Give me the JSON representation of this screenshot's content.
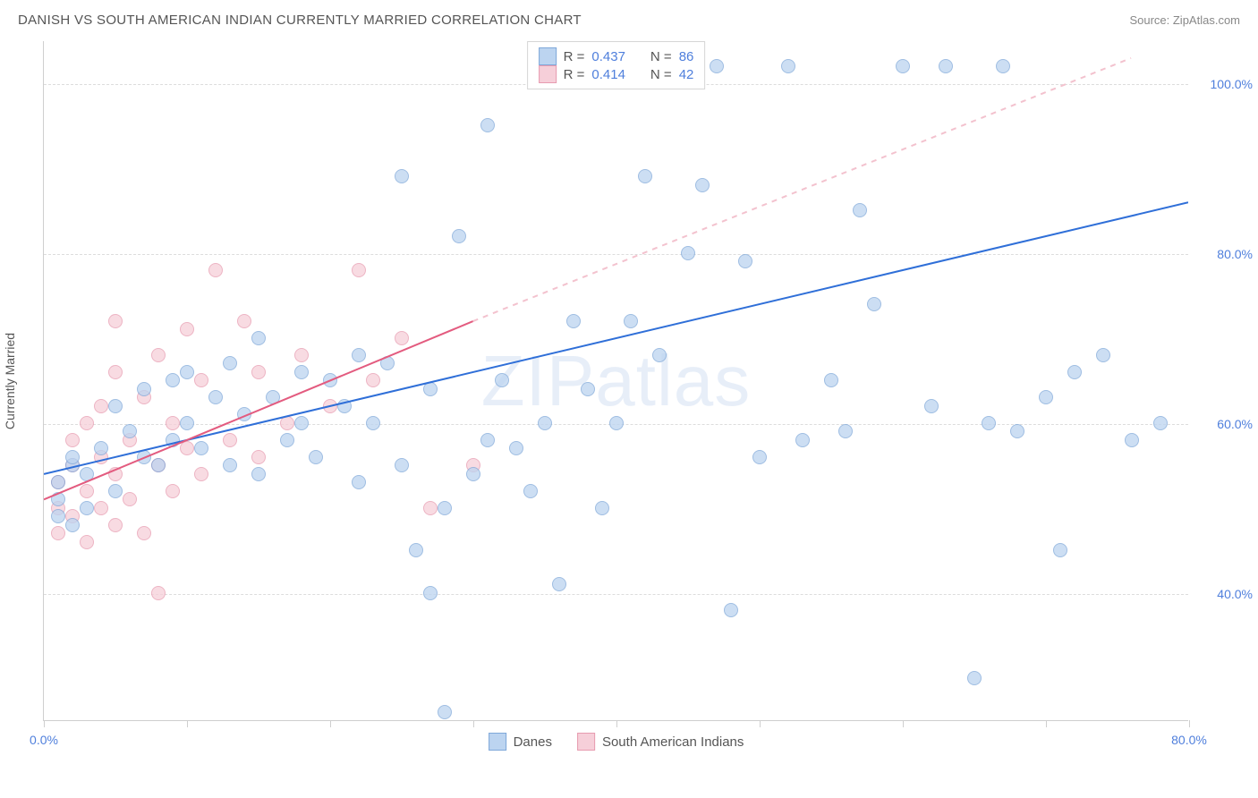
{
  "title": "DANISH VS SOUTH AMERICAN INDIAN CURRENTLY MARRIED CORRELATION CHART",
  "source": "Source: ZipAtlas.com",
  "watermark": "ZIPatlas",
  "y_axis_label": "Currently Married",
  "chart": {
    "type": "scatter",
    "xlim": [
      0,
      80
    ],
    "ylim": [
      25,
      105
    ],
    "x_ticks": [
      0,
      10,
      20,
      30,
      40,
      50,
      60,
      70,
      80
    ],
    "x_tick_labels": {
      "0": "0.0%",
      "80": "80.0%"
    },
    "y_gridlines": [
      40,
      60,
      80,
      100
    ],
    "y_tick_labels": {
      "40": "40.0%",
      "60": "60.0%",
      "80": "80.0%",
      "100": "100.0%"
    },
    "grid_color": "#dcdcdc",
    "axis_color": "#cfcfcf",
    "label_color": "#4f7fdc",
    "label_fontsize": 14,
    "background_color": "#ffffff",
    "marker_size": 16
  },
  "series_blue": {
    "name": "Danes",
    "fill": "#bcd4f0",
    "stroke": "#7fa8d9",
    "line_color": "#2f6fd8",
    "line_width": 2,
    "r": "0.437",
    "n": "86",
    "trend": {
      "x1": 0,
      "y1": 54,
      "x2": 80,
      "y2": 86
    },
    "points": [
      [
        1,
        49
      ],
      [
        1,
        51
      ],
      [
        1,
        53
      ],
      [
        2,
        48
      ],
      [
        2,
        55
      ],
      [
        2,
        56
      ],
      [
        3,
        50
      ],
      [
        3,
        54
      ],
      [
        4,
        57
      ],
      [
        5,
        52
      ],
      [
        5,
        62
      ],
      [
        6,
        59
      ],
      [
        7,
        56
      ],
      [
        7,
        64
      ],
      [
        8,
        55
      ],
      [
        9,
        58
      ],
      [
        9,
        65
      ],
      [
        10,
        60
      ],
      [
        10,
        66
      ],
      [
        11,
        57
      ],
      [
        12,
        63
      ],
      [
        13,
        55
      ],
      [
        13,
        67
      ],
      [
        14,
        61
      ],
      [
        15,
        54
      ],
      [
        15,
        70
      ],
      [
        16,
        63
      ],
      [
        17,
        58
      ],
      [
        18,
        66
      ],
      [
        18,
        60
      ],
      [
        19,
        56
      ],
      [
        20,
        65
      ],
      [
        21,
        62
      ],
      [
        22,
        68
      ],
      [
        22,
        53
      ],
      [
        23,
        60
      ],
      [
        24,
        67
      ],
      [
        25,
        55
      ],
      [
        25,
        89
      ],
      [
        26,
        45
      ],
      [
        27,
        40
      ],
      [
        27,
        64
      ],
      [
        28,
        50
      ],
      [
        28,
        26
      ],
      [
        29,
        82
      ],
      [
        30,
        54
      ],
      [
        31,
        58
      ],
      [
        31,
        95
      ],
      [
        32,
        65
      ],
      [
        33,
        57
      ],
      [
        34,
        52
      ],
      [
        35,
        60
      ],
      [
        36,
        41
      ],
      [
        37,
        72
      ],
      [
        38,
        64
      ],
      [
        39,
        50
      ],
      [
        40,
        60
      ],
      [
        41,
        72
      ],
      [
        42,
        89
      ],
      [
        43,
        68
      ],
      [
        44,
        102
      ],
      [
        45,
        80
      ],
      [
        46,
        88
      ],
      [
        47,
        102
      ],
      [
        48,
        38
      ],
      [
        49,
        79
      ],
      [
        50,
        56
      ],
      [
        52,
        102
      ],
      [
        53,
        58
      ],
      [
        55,
        65
      ],
      [
        56,
        59
      ],
      [
        57,
        85
      ],
      [
        58,
        74
      ],
      [
        60,
        102
      ],
      [
        62,
        62
      ],
      [
        63,
        102
      ],
      [
        65,
        30
      ],
      [
        66,
        60
      ],
      [
        67,
        102
      ],
      [
        68,
        59
      ],
      [
        70,
        63
      ],
      [
        71,
        45
      ],
      [
        72,
        66
      ],
      [
        74,
        68
      ],
      [
        76,
        58
      ],
      [
        78,
        60
      ]
    ]
  },
  "series_pink": {
    "name": "South American Indians",
    "fill": "#f6cfd9",
    "stroke": "#e79bb0",
    "line_color": "#e35b7f",
    "line_width": 2,
    "dash_color": "#f3c2ce",
    "r": "0.414",
    "n": "42",
    "trend_solid": {
      "x1": 0,
      "y1": 51,
      "x2": 30,
      "y2": 72
    },
    "trend_dash": {
      "x1": 30,
      "y1": 72,
      "x2": 76,
      "y2": 103
    },
    "points": [
      [
        1,
        47
      ],
      [
        1,
        50
      ],
      [
        1,
        53
      ],
      [
        2,
        49
      ],
      [
        2,
        55
      ],
      [
        2,
        58
      ],
      [
        3,
        46
      ],
      [
        3,
        52
      ],
      [
        3,
        60
      ],
      [
        4,
        50
      ],
      [
        4,
        56
      ],
      [
        4,
        62
      ],
      [
        5,
        48
      ],
      [
        5,
        54
      ],
      [
        5,
        66
      ],
      [
        5,
        72
      ],
      [
        6,
        51
      ],
      [
        6,
        58
      ],
      [
        7,
        47
      ],
      [
        7,
        63
      ],
      [
        8,
        40
      ],
      [
        8,
        55
      ],
      [
        8,
        68
      ],
      [
        9,
        52
      ],
      [
        9,
        60
      ],
      [
        10,
        57
      ],
      [
        10,
        71
      ],
      [
        11,
        54
      ],
      [
        11,
        65
      ],
      [
        12,
        78
      ],
      [
        13,
        58
      ],
      [
        14,
        72
      ],
      [
        15,
        56
      ],
      [
        15,
        66
      ],
      [
        17,
        60
      ],
      [
        18,
        68
      ],
      [
        20,
        62
      ],
      [
        22,
        78
      ],
      [
        23,
        65
      ],
      [
        25,
        70
      ],
      [
        27,
        50
      ],
      [
        30,
        55
      ]
    ]
  },
  "legend_stats": {
    "r_label": "R =",
    "n_label": "N ="
  },
  "legend_bottom": {
    "items": [
      "Danes",
      "South American Indians"
    ]
  }
}
